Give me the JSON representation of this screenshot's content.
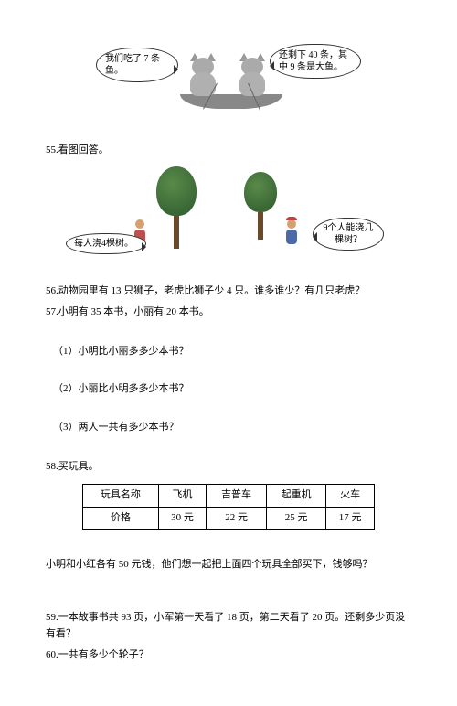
{
  "q54_image": {
    "bubble_left": "我们吃了 7 条鱼。",
    "bubble_right": "还剩下 40 条，其中 9 条是大鱼。"
  },
  "q55": {
    "title": "55.看图回答。",
    "bubble_left": "每人浇4棵树。",
    "bubble_right": "9个人能浇几棵树？"
  },
  "q56": "56.动物园里有 13 只狮子，老虎比狮子少 4 只。谁多谁少？有几只老虎？",
  "q57": {
    "title": "57.小明有 35 本书，小丽有 20 本书。",
    "sub1": "（1）小明比小丽多多少本书？",
    "sub2": "（2）小丽比小明多多少本书？",
    "sub3": "（3）两人一共有多少本书？"
  },
  "q58": {
    "title": "58.买玩具。",
    "table": {
      "headers": [
        "玩具名称",
        "飞机",
        "吉普车",
        "起重机",
        "火车"
      ],
      "row_label": "价格",
      "row": [
        "30 元",
        "22 元",
        "25 元",
        "17 元"
      ]
    },
    "question": "小明和小红各有 50 元钱，他们想一起把上面四个玩具全部买下，钱够吗？"
  },
  "q59": "59.一本故事书共 93 页，小军第一天看了 18 页，第二天看了 20 页。还剩多少页没有看？",
  "q60": "60.一共有多少个轮子？"
}
